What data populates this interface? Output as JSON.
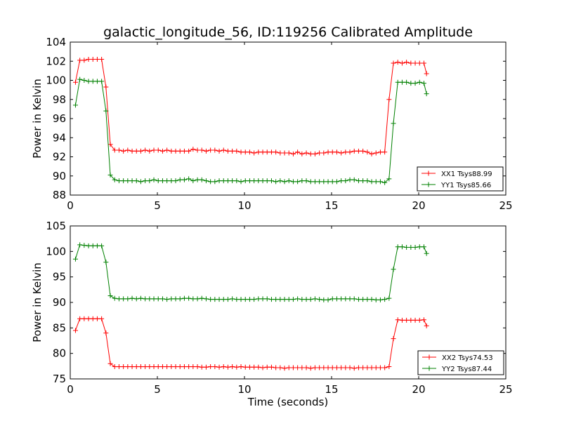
{
  "title": "galactic_longitude_56, ID:119256 Calibrated Amplitude",
  "xlabel": "Time (seconds)",
  "colors": {
    "xx": "#ff0000",
    "yy": "#008000"
  },
  "chart_data": [
    {
      "type": "line",
      "ylabel": "Power in Kelvin",
      "xlim": [
        0,
        25
      ],
      "ylim": [
        88,
        104
      ],
      "xticks": [
        "0",
        "5",
        "10",
        "15",
        "20",
        "25"
      ],
      "yticks": [
        "88",
        "90",
        "92",
        "94",
        "96",
        "98",
        "100",
        "102",
        "104"
      ],
      "legend_position": "bottom-right",
      "x": [
        0.3,
        0.55,
        0.8,
        1.05,
        1.3,
        1.55,
        1.8,
        2.05,
        2.3,
        2.55,
        2.8,
        3.05,
        3.3,
        3.55,
        3.8,
        4.05,
        4.3,
        4.55,
        4.8,
        5.05,
        5.3,
        5.55,
        5.8,
        6.05,
        6.3,
        6.55,
        6.8,
        7.05,
        7.3,
        7.55,
        7.8,
        8.05,
        8.3,
        8.55,
        8.8,
        9.05,
        9.3,
        9.55,
        9.8,
        10.05,
        10.3,
        10.55,
        10.8,
        11.05,
        11.3,
        11.55,
        11.8,
        12.05,
        12.3,
        12.55,
        12.8,
        13.05,
        13.3,
        13.55,
        13.8,
        14.05,
        14.3,
        14.55,
        14.8,
        15.05,
        15.3,
        15.55,
        15.8,
        16.05,
        16.3,
        16.55,
        16.8,
        17.05,
        17.3,
        17.55,
        17.8,
        18.05,
        18.3,
        18.55,
        18.8,
        19.05,
        19.3,
        19.55,
        19.8,
        20.05,
        20.3,
        20.45
      ],
      "series": [
        {
          "name": "XX1 Tsys88.99",
          "color": "#ff0000",
          "values": [
            99.8,
            102.1,
            102.1,
            102.2,
            102.2,
            102.2,
            102.2,
            99.3,
            93.3,
            92.7,
            92.7,
            92.6,
            92.7,
            92.6,
            92.6,
            92.6,
            92.7,
            92.6,
            92.7,
            92.7,
            92.6,
            92.7,
            92.6,
            92.6,
            92.6,
            92.6,
            92.6,
            92.8,
            92.7,
            92.7,
            92.6,
            92.7,
            92.7,
            92.6,
            92.7,
            92.6,
            92.6,
            92.6,
            92.5,
            92.5,
            92.5,
            92.4,
            92.5,
            92.5,
            92.5,
            92.5,
            92.5,
            92.4,
            92.4,
            92.4,
            92.3,
            92.5,
            92.3,
            92.4,
            92.3,
            92.3,
            92.4,
            92.4,
            92.5,
            92.5,
            92.5,
            92.4,
            92.5,
            92.5,
            92.6,
            92.6,
            92.6,
            92.5,
            92.3,
            92.4,
            92.5,
            92.5,
            98.0,
            101.8,
            101.9,
            101.8,
            101.9,
            101.8,
            101.8,
            101.8,
            101.8,
            100.7
          ]
        },
        {
          "name": "YY1 Tsys85.66",
          "color": "#008000",
          "values": [
            97.4,
            100.1,
            100.0,
            99.9,
            99.9,
            99.9,
            99.9,
            96.8,
            90.1,
            89.6,
            89.5,
            89.5,
            89.5,
            89.5,
            89.5,
            89.4,
            89.5,
            89.5,
            89.6,
            89.5,
            89.5,
            89.5,
            89.5,
            89.5,
            89.6,
            89.6,
            89.7,
            89.5,
            89.6,
            89.6,
            89.5,
            89.4,
            89.4,
            89.5,
            89.5,
            89.5,
            89.5,
            89.5,
            89.4,
            89.5,
            89.5,
            89.5,
            89.5,
            89.5,
            89.5,
            89.5,
            89.4,
            89.5,
            89.4,
            89.5,
            89.4,
            89.4,
            89.5,
            89.5,
            89.4,
            89.4,
            89.4,
            89.4,
            89.4,
            89.4,
            89.4,
            89.5,
            89.5,
            89.6,
            89.6,
            89.5,
            89.5,
            89.5,
            89.4,
            89.4,
            89.4,
            89.3,
            89.7,
            95.5,
            99.8,
            99.8,
            99.8,
            99.7,
            99.7,
            99.8,
            99.7,
            98.6
          ]
        }
      ]
    },
    {
      "type": "line",
      "ylabel": "Power in Kelvin",
      "xlim": [
        0,
        25
      ],
      "ylim": [
        75,
        105
      ],
      "xticks": [
        "0",
        "5",
        "10",
        "15",
        "20",
        "25"
      ],
      "yticks": [
        "75",
        "80",
        "85",
        "90",
        "95",
        "100",
        "105"
      ],
      "legend_position": "bottom-right",
      "x": [
        0.3,
        0.55,
        0.8,
        1.05,
        1.3,
        1.55,
        1.8,
        2.05,
        2.3,
        2.55,
        2.8,
        3.05,
        3.3,
        3.55,
        3.8,
        4.05,
        4.3,
        4.55,
        4.8,
        5.05,
        5.3,
        5.55,
        5.8,
        6.05,
        6.3,
        6.55,
        6.8,
        7.05,
        7.3,
        7.55,
        7.8,
        8.05,
        8.3,
        8.55,
        8.8,
        9.05,
        9.3,
        9.55,
        9.8,
        10.05,
        10.3,
        10.55,
        10.8,
        11.05,
        11.3,
        11.55,
        11.8,
        12.05,
        12.3,
        12.55,
        12.8,
        13.05,
        13.3,
        13.55,
        13.8,
        14.05,
        14.3,
        14.55,
        14.8,
        15.05,
        15.3,
        15.55,
        15.8,
        16.05,
        16.3,
        16.55,
        16.8,
        17.05,
        17.3,
        17.55,
        17.8,
        18.05,
        18.3,
        18.55,
        18.8,
        19.05,
        19.3,
        19.55,
        19.8,
        20.05,
        20.3,
        20.45
      ],
      "series": [
        {
          "name": "XX2 Tsys74.53",
          "color": "#ff0000",
          "values": [
            84.5,
            86.8,
            86.8,
            86.8,
            86.8,
            86.8,
            86.8,
            84.0,
            78.0,
            77.4,
            77.4,
            77.4,
            77.4,
            77.4,
            77.4,
            77.4,
            77.4,
            77.4,
            77.4,
            77.4,
            77.4,
            77.4,
            77.4,
            77.4,
            77.4,
            77.4,
            77.4,
            77.4,
            77.4,
            77.3,
            77.3,
            77.4,
            77.4,
            77.3,
            77.4,
            77.3,
            77.4,
            77.3,
            77.4,
            77.3,
            77.3,
            77.3,
            77.3,
            77.2,
            77.3,
            77.3,
            77.2,
            77.2,
            77.1,
            77.2,
            77.2,
            77.2,
            77.2,
            77.2,
            77.1,
            77.2,
            77.2,
            77.2,
            77.2,
            77.2,
            77.2,
            77.2,
            77.2,
            77.2,
            77.1,
            77.2,
            77.2,
            77.2,
            77.2,
            77.2,
            77.2,
            77.2,
            77.4,
            82.9,
            86.6,
            86.5,
            86.5,
            86.5,
            86.5,
            86.5,
            86.6,
            85.4
          ]
        },
        {
          "name": "YY2 Tsys87.44",
          "color": "#008000",
          "values": [
            98.5,
            101.3,
            101.2,
            101.1,
            101.1,
            101.1,
            101.1,
            97.9,
            91.3,
            90.8,
            90.7,
            90.7,
            90.7,
            90.8,
            90.7,
            90.8,
            90.7,
            90.7,
            90.7,
            90.7,
            90.7,
            90.6,
            90.7,
            90.7,
            90.7,
            90.8,
            90.8,
            90.7,
            90.7,
            90.8,
            90.7,
            90.6,
            90.6,
            90.6,
            90.6,
            90.6,
            90.7,
            90.6,
            90.6,
            90.6,
            90.6,
            90.6,
            90.7,
            90.7,
            90.7,
            90.6,
            90.6,
            90.6,
            90.6,
            90.6,
            90.6,
            90.7,
            90.6,
            90.6,
            90.6,
            90.7,
            90.6,
            90.5,
            90.5,
            90.7,
            90.7,
            90.7,
            90.7,
            90.7,
            90.7,
            90.6,
            90.6,
            90.6,
            90.6,
            90.5,
            90.5,
            90.6,
            90.8,
            96.5,
            100.9,
            100.9,
            100.8,
            100.8,
            100.8,
            100.9,
            100.9,
            99.6
          ]
        }
      ]
    }
  ]
}
